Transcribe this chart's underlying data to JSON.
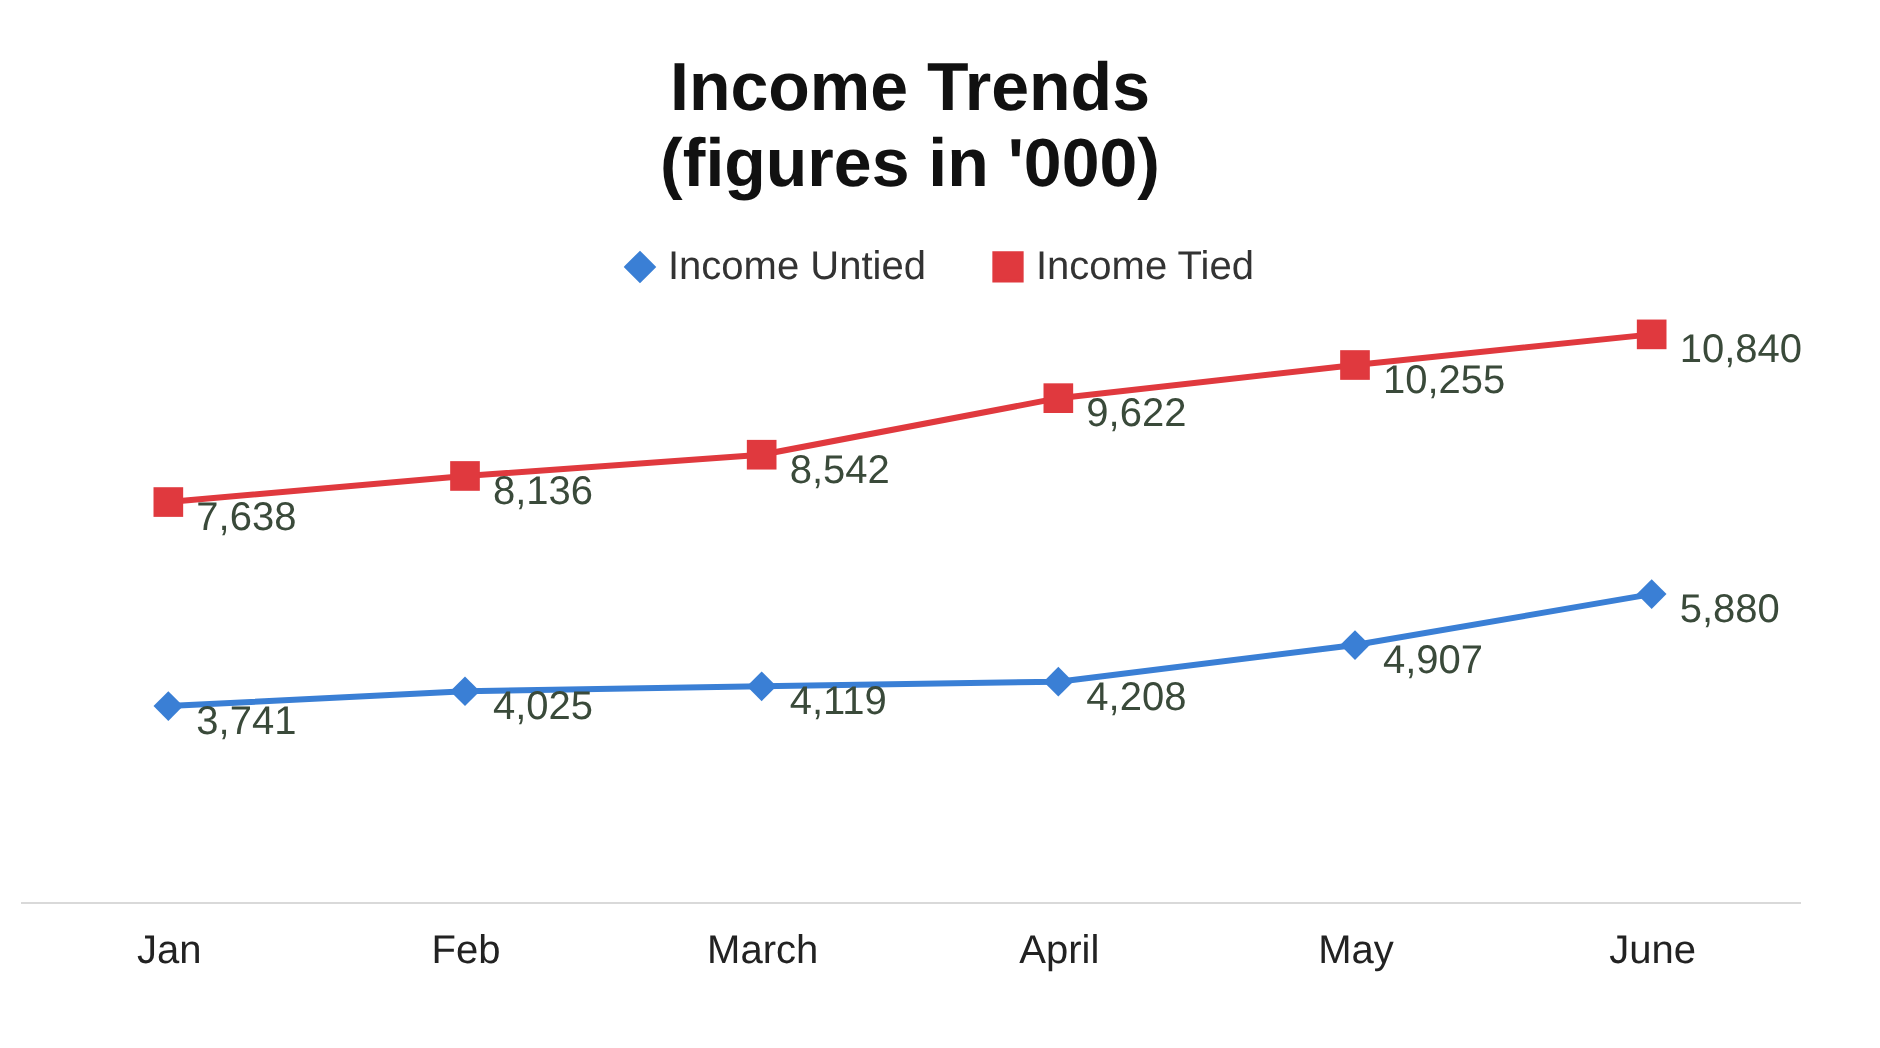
{
  "chart_data": {
    "type": "line",
    "title": "Income Trends",
    "subtitle": "(figures in '000)",
    "categories": [
      "Jan",
      "Feb",
      "March",
      "April",
      "May",
      "June"
    ],
    "series": [
      {
        "name": "Income Untied",
        "color": "#3a7fd5",
        "marker": "diamond",
        "values": [
          3741,
          4025,
          4119,
          4208,
          4907,
          5880
        ],
        "value_labels": [
          "3,741",
          "4,025",
          "4,119",
          "4,208",
          "4,907",
          "5,880"
        ]
      },
      {
        "name": "Income Tied",
        "color": "#e0393e",
        "marker": "square",
        "values": [
          7638,
          8136,
          8542,
          9622,
          10255,
          10840
        ],
        "value_labels": [
          "7,638",
          "8,136",
          "8,542",
          "9,622",
          "10,255",
          "10,840"
        ]
      }
    ],
    "data_labels": true,
    "legend": "top",
    "line_style": "solid",
    "grid": false
  }
}
